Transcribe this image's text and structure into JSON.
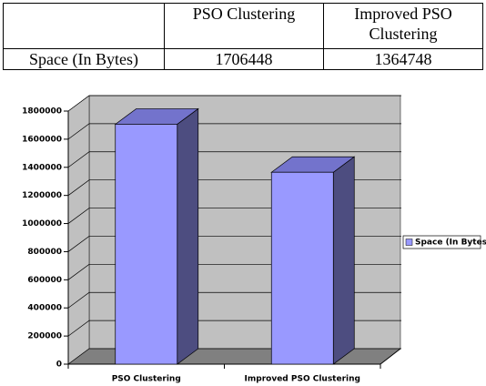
{
  "table": {
    "header": [
      "PSO Clustering",
      "Improved PSO Clustering"
    ],
    "rows": [
      [
        "Space (In Bytes)",
        1706448,
        1364748
      ]
    ]
  },
  "chart_data": {
    "type": "bar3d",
    "categories": [
      "PSO Clustering",
      "Improved PSO Clustering"
    ],
    "series": [
      {
        "name": "Space (In Bytes)",
        "color": "#9999ff",
        "values": [
          1706448,
          1364748
        ]
      }
    ],
    "ylim": [
      0,
      1800000
    ],
    "yticks": [
      0,
      200000,
      400000,
      600000,
      800000,
      1000000,
      1200000,
      1400000,
      1600000,
      1800000
    ],
    "grid": true,
    "legend": "right"
  }
}
